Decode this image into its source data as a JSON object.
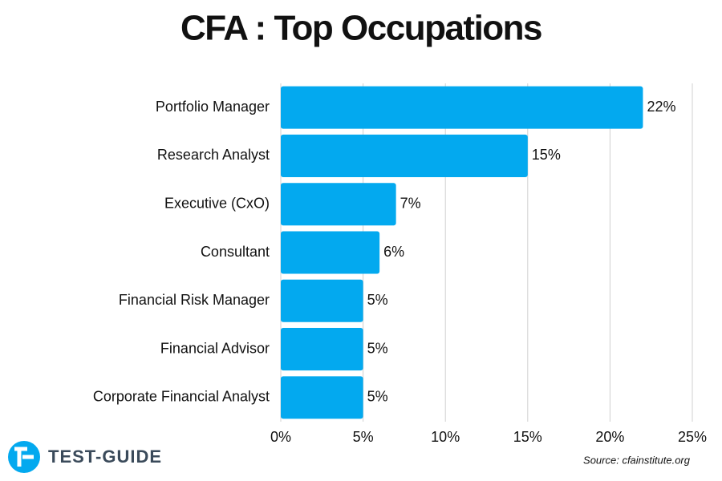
{
  "chart_data": {
    "type": "bar",
    "orientation": "horizontal",
    "title": "CFA : Top Occupations",
    "categories": [
      "Portfolio Manager",
      "Research Analyst",
      "Executive (CxO)",
      "Consultant",
      "Financial Risk Manager",
      "Financial Advisor",
      "Corporate Financial Analyst"
    ],
    "values": [
      22,
      15,
      7,
      6,
      5,
      5,
      5
    ],
    "value_labels": [
      "22%",
      "15%",
      "7%",
      "6%",
      "5%",
      "5%",
      "5%"
    ],
    "color": "#03a9ef",
    "xlim": [
      0,
      25
    ],
    "xticks": [
      {
        "value": 0,
        "label": "0%"
      },
      {
        "value": 5,
        "label": "5%"
      },
      {
        "value": 10,
        "label": "10%"
      },
      {
        "value": 15,
        "label": "15%"
      },
      {
        "value": 20,
        "label": "20%"
      },
      {
        "value": 25,
        "label": "25%"
      }
    ],
    "grid": true,
    "source": "Source: cfainstitute.org",
    "logo": "TEST-GUIDE"
  }
}
